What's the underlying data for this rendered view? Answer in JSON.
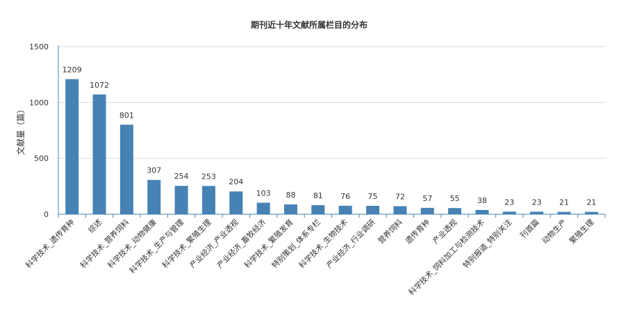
{
  "chart_data": {
    "type": "bar",
    "title": "期刊近十年文献所属栏目的分布",
    "ylabel": "文献量（篇）",
    "xlabel": "",
    "ylim": [
      0,
      1500
    ],
    "yticks": [
      "0",
      "500",
      "1000",
      "1500"
    ],
    "grid": true,
    "color": "#4682b4",
    "categories": [
      "科学技术_遗传育种",
      "综述",
      "科学技术_营养饲料",
      "科学技术_动物健康",
      "科学技术_生产与管理",
      "科学技术_繁殖生理",
      "产业经济_产业透视",
      "产业经济_畜牧经济",
      "科学技术_繁殖发育",
      "特别策划_体系专栏",
      "科学技术_生物技术",
      "产业经济_行业调研",
      "营养饲料",
      "遗传育种",
      "产业透视",
      "科学技术_饲料加工与检测技术",
      "特别报道_特别关注",
      "刊首篇",
      "动物生产",
      "繁殖生理"
    ],
    "values": [
      1209,
      1072,
      801,
      307,
      254,
      253,
      204,
      103,
      88,
      81,
      76,
      75,
      72,
      57,
      55,
      38,
      23,
      23,
      21,
      21
    ]
  }
}
